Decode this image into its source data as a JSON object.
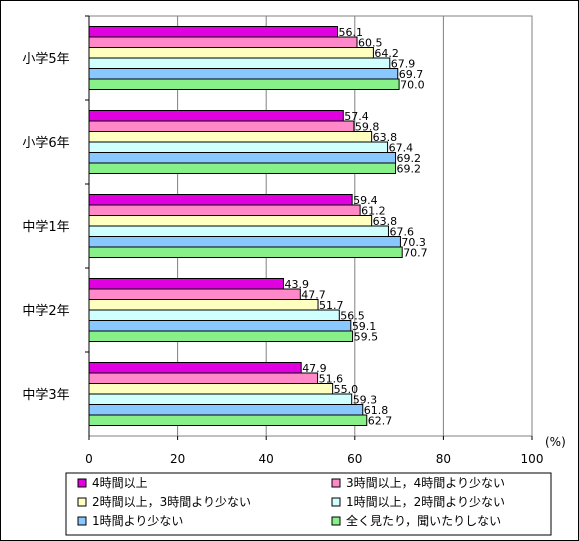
{
  "chart_data": {
    "type": "bar",
    "orientation": "horizontal",
    "categories": [
      "小学5年",
      "小学6年",
      "中学1年",
      "中学2年",
      "中学3年"
    ],
    "series": [
      {
        "name": "4時間以上",
        "color": "#e000e0",
        "values": [
          56.1,
          57.4,
          59.4,
          43.9,
          47.9
        ]
      },
      {
        "name": "3時間以上，4時間より少ない",
        "color": "#ff88c8",
        "values": [
          60.5,
          59.8,
          61.2,
          47.7,
          51.6
        ]
      },
      {
        "name": "2時間以上，3時間より少ない",
        "color": "#ffffc0",
        "values": [
          64.2,
          63.8,
          63.8,
          51.7,
          55.0
        ]
      },
      {
        "name": "1時間以上，2時間より少ない",
        "color": "#d0ffff",
        "values": [
          67.9,
          67.4,
          67.6,
          56.5,
          59.3
        ]
      },
      {
        "name": "1時間より少ない",
        "color": "#88c8ff",
        "values": [
          69.7,
          69.2,
          70.3,
          59.1,
          61.8
        ]
      },
      {
        "name": "全く見たり，聞いたりしない",
        "color": "#88f088",
        "values": [
          70.0,
          69.2,
          70.7,
          59.5,
          62.7
        ]
      }
    ],
    "value_labels": [
      [
        "56.1",
        "60.5",
        "64.2",
        "67.9",
        "69.7",
        "70.0"
      ],
      [
        "57.4",
        "59.8",
        "63.8",
        "67.4",
        "69.2",
        "69.2"
      ],
      [
        "59.4",
        "61.2",
        "63.8",
        "67.6",
        "70.3",
        "70.7"
      ],
      [
        "43.9",
        "47.7",
        "51.7",
        "56.5",
        "59.1",
        "59.5"
      ],
      [
        "47.9",
        "51.6",
        "55.0",
        "59.3",
        "61.8",
        "62.7"
      ]
    ],
    "xlim": [
      0,
      100
    ],
    "x_ticks": [
      "0",
      "20",
      "40",
      "60",
      "80",
      "100"
    ],
    "x_unit": "(%)",
    "grid": "vertical",
    "legend_position": "bottom"
  }
}
